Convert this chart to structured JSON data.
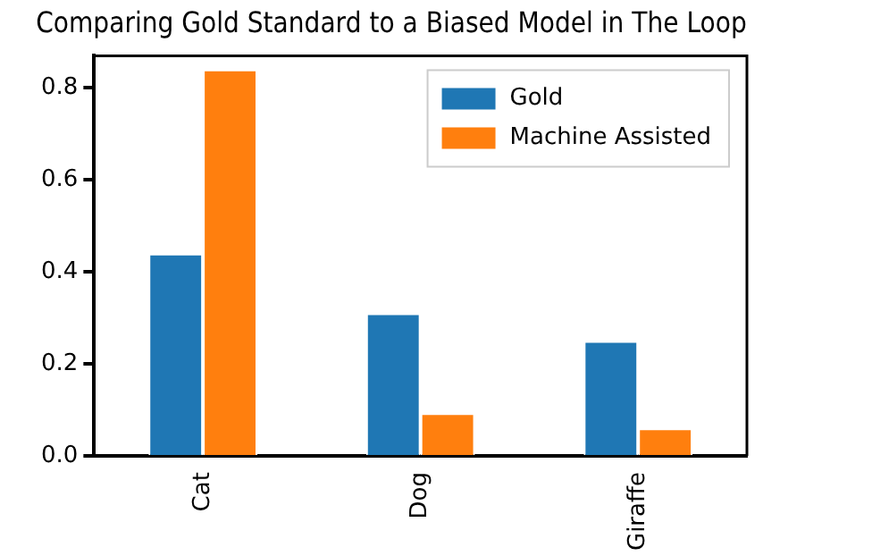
{
  "chart_data": {
    "type": "bar",
    "title": "Comparing Gold Standard to a Biased Model in The Loop",
    "categories": [
      "Cat",
      "Dog",
      "Giraffe"
    ],
    "series": [
      {
        "name": "Gold",
        "color": "#1f77b4",
        "values": [
          0.44,
          0.31,
          0.25
        ]
      },
      {
        "name": "Machine Assisted",
        "color": "#ff7f0e",
        "values": [
          0.84,
          0.093,
          0.06
        ]
      }
    ],
    "ylim": [
      0,
      0.87
    ],
    "yticks": [
      {
        "value": 0,
        "label": "0.0"
      },
      {
        "value": 0.2,
        "label": "0.2"
      },
      {
        "value": 0.4,
        "label": "0.4"
      },
      {
        "value": 0.6,
        "label": "0.6"
      },
      {
        "value": 0.8,
        "label": "0.8"
      }
    ],
    "grid": false,
    "legend": "top right"
  }
}
